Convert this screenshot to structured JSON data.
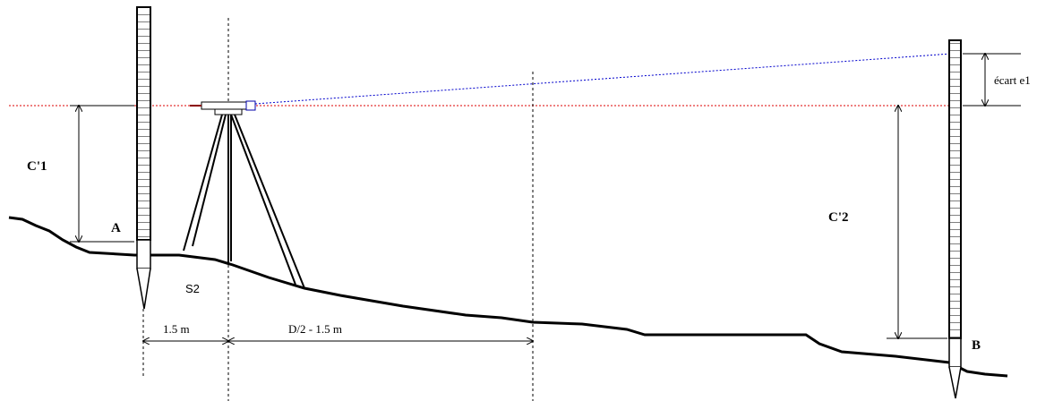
{
  "labels": {
    "c1": "C'1",
    "a": "A",
    "s2": "S2",
    "d1": "1.5 m",
    "d2": "D/2 - 1.5 m",
    "c2": "C'2",
    "b": "B",
    "e1": "écart e1"
  }
}
